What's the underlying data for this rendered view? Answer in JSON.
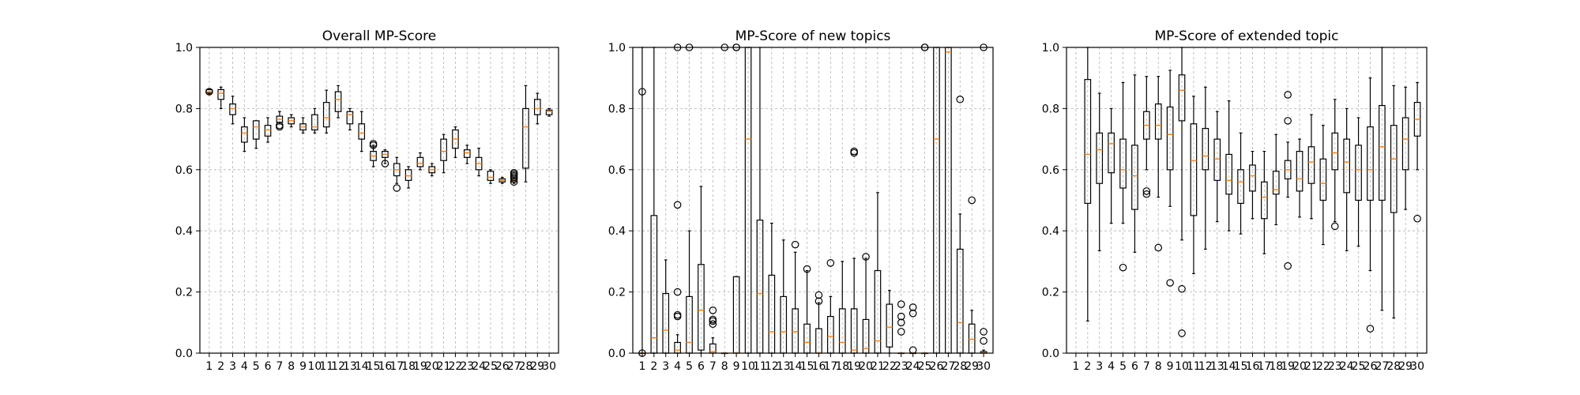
{
  "chart_data": [
    {
      "type": "box",
      "title": "Overall MP-Score",
      "xlabel": "",
      "ylabel": "",
      "ylim": [
        0.0,
        1.0
      ],
      "yticks": [
        "0.0",
        "0.2",
        "0.4",
        "0.6",
        "0.8",
        "1.0"
      ],
      "categories": [
        "1",
        "2",
        "3",
        "4",
        "5",
        "6",
        "7",
        "8",
        "9",
        "10",
        "11",
        "12",
        "13",
        "14",
        "15",
        "16",
        "17",
        "18",
        "19",
        "20",
        "21",
        "22",
        "23",
        "24",
        "25",
        "26",
        "27",
        "28",
        "29",
        "30"
      ],
      "grid": true,
      "boxes": [
        {
          "whislo": 0.848,
          "q1": 0.851,
          "med": 0.856,
          "q3": 0.862,
          "whishi": 0.865,
          "fliers": [
            0.855
          ]
        },
        {
          "whislo": 0.8,
          "q1": 0.83,
          "med": 0.85,
          "q3": 0.862,
          "whishi": 0.87,
          "fliers": []
        },
        {
          "whislo": 0.75,
          "q1": 0.78,
          "med": 0.8,
          "q3": 0.815,
          "whishi": 0.84,
          "fliers": []
        },
        {
          "whislo": 0.66,
          "q1": 0.69,
          "med": 0.72,
          "q3": 0.74,
          "whishi": 0.77,
          "fliers": []
        },
        {
          "whislo": 0.67,
          "q1": 0.7,
          "med": 0.74,
          "q3": 0.76,
          "whishi": 0.76,
          "fliers": []
        },
        {
          "whislo": 0.69,
          "q1": 0.71,
          "med": 0.73,
          "q3": 0.745,
          "whishi": 0.77,
          "fliers": []
        },
        {
          "whislo": 0.75,
          "q1": 0.755,
          "med": 0.765,
          "q3": 0.775,
          "whishi": 0.79,
          "fliers": [
            0.745,
            0.74
          ]
        },
        {
          "whislo": 0.74,
          "q1": 0.75,
          "med": 0.76,
          "q3": 0.77,
          "whishi": 0.78,
          "fliers": []
        },
        {
          "whislo": 0.72,
          "q1": 0.73,
          "med": 0.74,
          "q3": 0.75,
          "whishi": 0.77,
          "fliers": []
        },
        {
          "whislo": 0.72,
          "q1": 0.73,
          "med": 0.74,
          "q3": 0.78,
          "whishi": 0.8,
          "fliers": []
        },
        {
          "whislo": 0.72,
          "q1": 0.74,
          "med": 0.77,
          "q3": 0.82,
          "whishi": 0.86,
          "fliers": []
        },
        {
          "whislo": 0.77,
          "q1": 0.79,
          "med": 0.83,
          "q3": 0.855,
          "whishi": 0.875,
          "fliers": []
        },
        {
          "whislo": 0.73,
          "q1": 0.75,
          "med": 0.78,
          "q3": 0.79,
          "whishi": 0.8,
          "fliers": []
        },
        {
          "whislo": 0.66,
          "q1": 0.7,
          "med": 0.72,
          "q3": 0.75,
          "whishi": 0.79,
          "fliers": []
        },
        {
          "whislo": 0.61,
          "q1": 0.63,
          "med": 0.645,
          "q3": 0.66,
          "whishi": 0.68,
          "fliers": [
            0.685,
            0.68
          ]
        },
        {
          "whislo": 0.62,
          "q1": 0.64,
          "med": 0.65,
          "q3": 0.66,
          "whishi": 0.665,
          "fliers": [
            0.62
          ]
        },
        {
          "whislo": 0.555,
          "q1": 0.58,
          "med": 0.6,
          "q3": 0.62,
          "whishi": 0.64,
          "fliers": [
            0.54
          ]
        },
        {
          "whislo": 0.54,
          "q1": 0.565,
          "med": 0.58,
          "q3": 0.6,
          "whishi": 0.61,
          "fliers": []
        },
        {
          "whislo": 0.6,
          "q1": 0.61,
          "med": 0.62,
          "q3": 0.64,
          "whishi": 0.655,
          "fliers": []
        },
        {
          "whislo": 0.58,
          "q1": 0.59,
          "med": 0.6,
          "q3": 0.61,
          "whishi": 0.62,
          "fliers": []
        },
        {
          "whislo": 0.59,
          "q1": 0.63,
          "med": 0.66,
          "q3": 0.7,
          "whishi": 0.715,
          "fliers": []
        },
        {
          "whislo": 0.64,
          "q1": 0.67,
          "med": 0.7,
          "q3": 0.73,
          "whishi": 0.74,
          "fliers": []
        },
        {
          "whislo": 0.62,
          "q1": 0.64,
          "med": 0.655,
          "q3": 0.665,
          "whishi": 0.68,
          "fliers": []
        },
        {
          "whislo": 0.58,
          "q1": 0.6,
          "med": 0.62,
          "q3": 0.64,
          "whishi": 0.67,
          "fliers": []
        },
        {
          "whislo": 0.555,
          "q1": 0.565,
          "med": 0.575,
          "q3": 0.595,
          "whishi": 0.6,
          "fliers": []
        },
        {
          "whislo": 0.555,
          "q1": 0.56,
          "med": 0.565,
          "q3": 0.57,
          "whishi": 0.575,
          "fliers": []
        },
        {
          "whislo": 0.555,
          "q1": 0.56,
          "med": 0.565,
          "q3": 0.57,
          "whishi": 0.575,
          "fliers": [
            0.58,
            0.585,
            0.59,
            0.57,
            0.56,
            0.575
          ]
        },
        {
          "whislo": 0.56,
          "q1": 0.605,
          "med": 0.74,
          "q3": 0.8,
          "whishi": 0.875,
          "fliers": []
        },
        {
          "whislo": 0.75,
          "q1": 0.78,
          "med": 0.8,
          "q3": 0.83,
          "whishi": 0.85,
          "fliers": []
        },
        {
          "whislo": 0.775,
          "q1": 0.78,
          "med": 0.79,
          "q3": 0.795,
          "whishi": 0.8,
          "fliers": []
        }
      ]
    },
    {
      "type": "box",
      "title": "MP-Score of new topics",
      "xlabel": "",
      "ylabel": "",
      "ylim": [
        0.0,
        1.0
      ],
      "yticks": [
        "0.0",
        "0.2",
        "0.4",
        "0.6",
        "0.8",
        "1.0"
      ],
      "categories": [
        "1",
        "2",
        "3",
        "4",
        "5",
        "6",
        "7",
        "8",
        "9",
        "10",
        "11",
        "12",
        "13",
        "14",
        "15",
        "16",
        "17",
        "18",
        "19",
        "20",
        "21",
        "22",
        "23",
        "24",
        "25",
        "26",
        "27",
        "28",
        "29",
        "30"
      ],
      "grid": true,
      "boxes": [
        {
          "whislo": 0.0,
          "q1": 0.0,
          "med": 0.0,
          "q3": 0.0,
          "whishi": 1.0,
          "fliers": [
            0.855,
            0.0
          ]
        },
        {
          "whislo": 0.0,
          "q1": 0.0,
          "med": 0.05,
          "q3": 0.45,
          "whishi": 1.0,
          "fliers": []
        },
        {
          "whislo": 0.0,
          "q1": 0.0,
          "med": 0.075,
          "q3": 0.195,
          "whishi": 0.305,
          "fliers": []
        },
        {
          "whislo": 0.0,
          "q1": 0.0,
          "med": 0.01,
          "q3": 0.035,
          "whishi": 0.06,
          "fliers": [
            0.125,
            0.12,
            0.2,
            0.485,
            1.0
          ]
        },
        {
          "whislo": 0.0,
          "q1": 0.0,
          "med": 0.035,
          "q3": 0.185,
          "whishi": 0.4,
          "fliers": [
            1.0
          ]
        },
        {
          "whislo": 0.0,
          "q1": 0.01,
          "med": 0.14,
          "q3": 0.29,
          "whishi": 0.545,
          "fliers": []
        },
        {
          "whislo": 0.0,
          "q1": 0.0,
          "med": 0.005,
          "q3": 0.03,
          "whishi": 0.05,
          "fliers": [
            0.095,
            0.105,
            0.11,
            0.14
          ]
        },
        {
          "whislo": 0.0,
          "q1": 0.0,
          "med": 0.0,
          "q3": 0.0,
          "whishi": 0.0,
          "fliers": [
            1.0
          ]
        },
        {
          "whislo": 0.0,
          "q1": 0.0,
          "med": 0.0,
          "q3": 0.25,
          "whishi": 0.25,
          "fliers": [
            1.0,
            1.0
          ]
        },
        {
          "whislo": 0.0,
          "q1": 0.0,
          "med": 0.7,
          "q3": 1.0,
          "whishi": 1.0,
          "fliers": []
        },
        {
          "whislo": 0.0,
          "q1": 0.0,
          "med": 0.195,
          "q3": 0.435,
          "whishi": 1.0,
          "fliers": []
        },
        {
          "whislo": 0.0,
          "q1": 0.0,
          "med": 0.07,
          "q3": 0.255,
          "whishi": 0.425,
          "fliers": []
        },
        {
          "whislo": 0.0,
          "q1": 0.0,
          "med": 0.07,
          "q3": 0.185,
          "whishi": 0.37,
          "fliers": []
        },
        {
          "whislo": 0.0,
          "q1": 0.0,
          "med": 0.07,
          "q3": 0.145,
          "whishi": 0.33,
          "fliers": [
            0.355
          ]
        },
        {
          "whislo": 0.0,
          "q1": 0.0,
          "med": 0.035,
          "q3": 0.095,
          "whishi": 0.27,
          "fliers": [
            0.275
          ]
        },
        {
          "whislo": 0.0,
          "q1": 0.0,
          "med": 0.0,
          "q3": 0.08,
          "whishi": 0.165,
          "fliers": [
            0.17,
            0.19
          ]
        },
        {
          "whislo": 0.0,
          "q1": 0.0,
          "med": 0.055,
          "q3": 0.12,
          "whishi": 0.185,
          "fliers": [
            0.295
          ]
        },
        {
          "whislo": 0.0,
          "q1": 0.0,
          "med": 0.035,
          "q3": 0.145,
          "whishi": 0.3,
          "fliers": []
        },
        {
          "whislo": 0.0,
          "q1": 0.0,
          "med": 0.01,
          "q3": 0.145,
          "whishi": 0.31,
          "fliers": [
            0.655,
            0.66
          ]
        },
        {
          "whislo": 0.0,
          "q1": 0.0,
          "med": 0.015,
          "q3": 0.11,
          "whishi": 0.31,
          "fliers": [
            0.315
          ]
        },
        {
          "whislo": 0.0,
          "q1": 0.0,
          "med": 0.04,
          "q3": 0.27,
          "whishi": 0.525,
          "fliers": []
        },
        {
          "whislo": 0.0,
          "q1": 0.02,
          "med": 0.085,
          "q3": 0.16,
          "whishi": 0.205,
          "fliers": []
        },
        {
          "whislo": 0.0,
          "q1": 0.0,
          "med": 0.0,
          "q3": 0.0,
          "whishi": 0.0,
          "fliers": [
            0.16,
            0.12,
            0.1,
            0.07
          ]
        },
        {
          "whislo": 0.0,
          "q1": 0.0,
          "med": 0.0,
          "q3": 0.0,
          "whishi": 0.0,
          "fliers": [
            0.15,
            0.13,
            0.01
          ]
        },
        {
          "whislo": 0.0,
          "q1": 0.0,
          "med": 0.0,
          "q3": 0.0,
          "whishi": 0.0,
          "fliers": [
            1.0,
            1.0
          ]
        },
        {
          "whislo": 0.0,
          "q1": 0.0,
          "med": 0.7,
          "q3": 1.0,
          "whishi": 1.0,
          "fliers": []
        },
        {
          "whislo": 0.0,
          "q1": 0.0,
          "med": 0.985,
          "q3": 1.0,
          "whishi": 1.0,
          "fliers": []
        },
        {
          "whislo": 0.0,
          "q1": 0.0,
          "med": 0.1,
          "q3": 0.34,
          "whishi": 0.455,
          "fliers": [
            0.83
          ]
        },
        {
          "whislo": 0.0,
          "q1": 0.0,
          "med": 0.045,
          "q3": 0.095,
          "whishi": 0.14,
          "fliers": [
            0.5
          ]
        },
        {
          "whislo": 0.0,
          "q1": 0.0,
          "med": 0.0,
          "q3": 0.005,
          "whishi": 0.01,
          "fliers": [
            0.07,
            0.04,
            1.0
          ]
        }
      ]
    },
    {
      "type": "box",
      "title": "MP-Score of extended topic",
      "xlabel": "",
      "ylabel": "",
      "ylim": [
        0.0,
        1.0
      ],
      "yticks": [
        "0.0",
        "0.2",
        "0.4",
        "0.6",
        "0.8",
        "1.0"
      ],
      "categories": [
        "1",
        "2",
        "3",
        "4",
        "5",
        "6",
        "7",
        "8",
        "9",
        "10",
        "11",
        "12",
        "13",
        "14",
        "15",
        "16",
        "17",
        "18",
        "19",
        "20",
        "21",
        "22",
        "23",
        "24",
        "25",
        "26",
        "27",
        "28",
        "29",
        "30"
      ],
      "grid": true,
      "boxes": [
        {
          "whislo": null,
          "q1": null,
          "med": null,
          "q3": null,
          "whishi": null,
          "fliers": []
        },
        {
          "whislo": 0.105,
          "q1": 0.49,
          "med": 0.65,
          "q3": 0.895,
          "whishi": 1.0,
          "fliers": []
        },
        {
          "whislo": 0.335,
          "q1": 0.555,
          "med": 0.665,
          "q3": 0.72,
          "whishi": 0.85,
          "fliers": []
        },
        {
          "whislo": 0.425,
          "q1": 0.59,
          "med": 0.685,
          "q3": 0.72,
          "whishi": 0.8,
          "fliers": []
        },
        {
          "whislo": 0.425,
          "q1": 0.54,
          "med": 0.6,
          "q3": 0.7,
          "whishi": 0.885,
          "fliers": [
            0.28
          ]
        },
        {
          "whislo": 0.33,
          "q1": 0.47,
          "med": 0.58,
          "q3": 0.68,
          "whishi": 0.91,
          "fliers": []
        },
        {
          "whislo": 0.6,
          "q1": 0.7,
          "med": 0.745,
          "q3": 0.79,
          "whishi": 0.905,
          "fliers": [
            0.53,
            0.52
          ]
        },
        {
          "whislo": 0.51,
          "q1": 0.7,
          "med": 0.745,
          "q3": 0.815,
          "whishi": 0.905,
          "fliers": [
            0.345
          ]
        },
        {
          "whislo": 0.48,
          "q1": 0.6,
          "med": 0.715,
          "q3": 0.805,
          "whishi": 0.925,
          "fliers": [
            0.23
          ]
        },
        {
          "whislo": 0.37,
          "q1": 0.76,
          "med": 0.86,
          "q3": 0.91,
          "whishi": 1.0,
          "fliers": [
            0.21,
            0.065
          ]
        },
        {
          "whislo": 0.26,
          "q1": 0.45,
          "med": 0.63,
          "q3": 0.75,
          "whishi": 0.84,
          "fliers": []
        },
        {
          "whislo": 0.34,
          "q1": 0.6,
          "med": 0.645,
          "q3": 0.735,
          "whishi": 0.87,
          "fliers": []
        },
        {
          "whislo": 0.43,
          "q1": 0.565,
          "med": 0.635,
          "q3": 0.7,
          "whishi": 0.79,
          "fliers": []
        },
        {
          "whislo": 0.4,
          "q1": 0.52,
          "med": 0.565,
          "q3": 0.65,
          "whishi": 0.825,
          "fliers": []
        },
        {
          "whislo": 0.39,
          "q1": 0.49,
          "med": 0.56,
          "q3": 0.6,
          "whishi": 0.72,
          "fliers": []
        },
        {
          "whislo": 0.44,
          "q1": 0.53,
          "med": 0.58,
          "q3": 0.615,
          "whishi": 0.66,
          "fliers": []
        },
        {
          "whislo": 0.325,
          "q1": 0.44,
          "med": 0.51,
          "q3": 0.56,
          "whishi": 0.66,
          "fliers": []
        },
        {
          "whislo": 0.42,
          "q1": 0.52,
          "med": 0.535,
          "q3": 0.595,
          "whishi": 0.715,
          "fliers": []
        },
        {
          "whislo": 0.51,
          "q1": 0.57,
          "med": 0.6,
          "q3": 0.63,
          "whishi": 0.69,
          "fliers": [
            0.845,
            0.76,
            0.285
          ]
        },
        {
          "whislo": 0.445,
          "q1": 0.53,
          "med": 0.57,
          "q3": 0.66,
          "whishi": 0.7,
          "fliers": []
        },
        {
          "whislo": 0.44,
          "q1": 0.555,
          "med": 0.625,
          "q3": 0.675,
          "whishi": 0.78,
          "fliers": []
        },
        {
          "whislo": 0.355,
          "q1": 0.5,
          "med": 0.555,
          "q3": 0.635,
          "whishi": 0.745,
          "fliers": []
        },
        {
          "whislo": 0.43,
          "q1": 0.6,
          "med": 0.655,
          "q3": 0.72,
          "whishi": 0.83,
          "fliers": [
            0.415
          ]
        },
        {
          "whislo": 0.335,
          "q1": 0.525,
          "med": 0.625,
          "q3": 0.7,
          "whishi": 0.8,
          "fliers": []
        },
        {
          "whislo": 0.35,
          "q1": 0.5,
          "med": 0.6,
          "q3": 0.68,
          "whishi": 0.77,
          "fliers": []
        },
        {
          "whislo": 0.27,
          "q1": 0.5,
          "med": 0.6,
          "q3": 0.74,
          "whishi": 0.9,
          "fliers": [
            0.08
          ]
        },
        {
          "whislo": 0.14,
          "q1": 0.5,
          "med": 0.675,
          "q3": 0.81,
          "whishi": 1.0,
          "fliers": []
        },
        {
          "whislo": 0.115,
          "q1": 0.46,
          "med": 0.635,
          "q3": 0.745,
          "whishi": 0.875,
          "fliers": []
        },
        {
          "whislo": 0.47,
          "q1": 0.6,
          "med": 0.7,
          "q3": 0.77,
          "whishi": 0.87,
          "fliers": []
        },
        {
          "whislo": 0.6,
          "q1": 0.71,
          "med": 0.765,
          "q3": 0.82,
          "whishi": 0.885,
          "fliers": [
            0.44
          ]
        }
      ]
    }
  ]
}
